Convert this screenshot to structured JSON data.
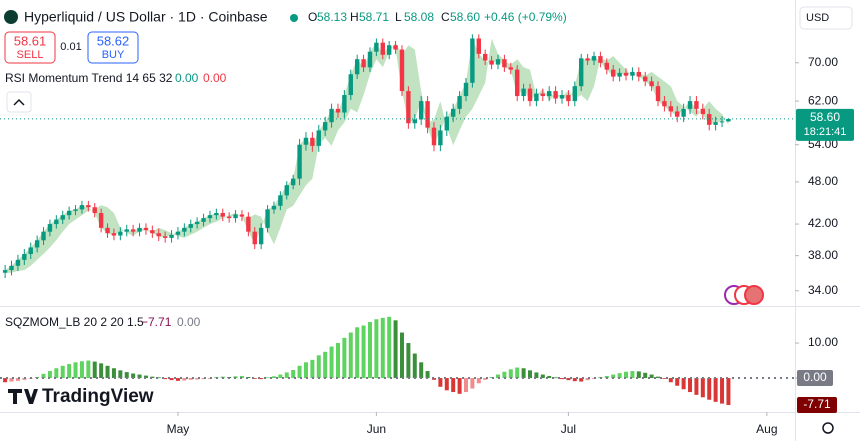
{
  "header": {
    "title": "Hyperliquid / US Dollar · 1D · Coinbase",
    "ohlc": [
      {
        "label": "O",
        "value": "58.13"
      },
      {
        "label": "H",
        "value": "58.71"
      },
      {
        "label": "L",
        "value": "58.08"
      },
      {
        "label": "C",
        "value": "58.60"
      }
    ],
    "change": "+0.46 (+0.79%)",
    "currency": "USD"
  },
  "trade": {
    "sell_price": "58.61",
    "sell": "SELL",
    "spread": "0.01",
    "buy_price": "58.62",
    "buy": "BUY"
  },
  "indicator1": {
    "name": "RSI Momentum Trend 14 65 32",
    "values": [
      "0.00",
      "0.00"
    ]
  },
  "indicator2": {
    "name": "SQZMOM_LB 20 2 20 1.5",
    "values": [
      "−7.71",
      "0.00"
    ]
  },
  "price_tag": {
    "price": "58.60",
    "countdown": "18:21:41"
  },
  "brand": "TradingView",
  "chart_data": [
    {
      "type": "candlestick",
      "open": [
        36.0,
        36.3,
        36.8,
        37.5,
        38.2,
        39.0,
        39.9,
        41.0,
        42.0,
        42.6,
        43.2,
        43.8,
        44.0,
        44.6,
        44.3,
        43.5,
        41.5,
        40.8,
        40.5,
        41.0,
        41.3,
        41.0,
        41.5,
        41.2,
        40.8,
        40.4,
        40.2,
        40.6,
        41.0,
        41.5,
        42.0,
        42.3,
        42.8,
        43.2,
        43.5,
        43.0,
        42.8,
        43.3,
        43.0,
        41.0,
        39.4,
        41.5,
        44.0,
        44.5,
        46.0,
        47.5,
        48.5,
        54.0,
        55.2,
        53.8,
        56.5,
        58.0,
        60.5,
        59.8,
        63.2,
        67.5,
        70.8,
        69.0,
        72.5,
        74.6,
        71.8,
        74.0,
        73.0,
        64.0,
        57.8,
        58.5,
        62.0,
        57.0,
        53.9,
        56.5,
        59.0,
        60.5,
        63.0,
        65.7,
        75.6,
        72.0,
        70.5,
        69.6,
        70.8,
        69.0,
        68.5,
        63.0,
        64.5,
        62.0,
        63.5,
        63.0,
        64.0,
        62.5,
        63.2,
        62.0,
        65.0,
        71.0,
        70.5,
        71.5,
        70.0,
        68.5,
        67.0,
        67.8,
        67.2,
        68.0,
        67.0,
        66.0,
        65.0,
        62.0,
        61.0,
        60.0,
        59.0,
        60.5,
        62.0,
        60.5,
        59.5,
        57.5,
        58.0,
        58.13
      ],
      "high": [
        36.9,
        37.4,
        38.1,
        38.8,
        39.6,
        40.5,
        41.6,
        42.6,
        43.2,
        43.8,
        44.4,
        44.6,
        45.2,
        45.2,
        44.9,
        44.1,
        42.1,
        41.4,
        41.6,
        41.9,
        41.9,
        42.1,
        42.1,
        41.8,
        41.4,
        41.0,
        41.2,
        41.6,
        42.1,
        42.6,
        42.9,
        43.4,
        43.8,
        44.1,
        44.1,
        43.6,
        43.9,
        43.9,
        43.6,
        41.6,
        42.1,
        44.6,
        45.1,
        46.6,
        48.1,
        49.1,
        55.0,
        56.2,
        56.2,
        57.5,
        59.0,
        61.5,
        61.5,
        64.2,
        68.5,
        71.8,
        71.8,
        73.5,
        75.6,
        75.6,
        75.0,
        75.0,
        74.0,
        65.0,
        59.5,
        63.0,
        63.0,
        58.0,
        57.5,
        60.0,
        61.5,
        64.0,
        66.7,
        76.6,
        76.6,
        73.0,
        71.5,
        71.8,
        71.8,
        70.0,
        69.5,
        65.5,
        65.5,
        64.5,
        64.5,
        65.0,
        65.0,
        64.2,
        64.2,
        66.0,
        72.0,
        72.0,
        72.5,
        72.5,
        71.0,
        69.5,
        68.8,
        68.8,
        69.0,
        69.0,
        68.0,
        67.0,
        66.0,
        63.0,
        62.0,
        61.0,
        61.5,
        63.0,
        63.0,
        61.5,
        60.5,
        59.0,
        59.1,
        58.71
      ],
      "low": [
        35.4,
        35.7,
        36.2,
        36.9,
        37.6,
        38.4,
        39.3,
        40.4,
        41.4,
        42.0,
        42.6,
        43.2,
        43.4,
        43.7,
        42.9,
        40.9,
        40.2,
        39.9,
        39.9,
        40.4,
        40.4,
        40.4,
        40.6,
        40.2,
        39.8,
        39.6,
        39.6,
        40.0,
        40.4,
        40.9,
        41.4,
        41.7,
        42.2,
        42.6,
        42.4,
        42.2,
        42.2,
        42.4,
        40.4,
        38.8,
        38.8,
        40.9,
        43.4,
        43.9,
        45.4,
        46.9,
        47.5,
        53.0,
        52.8,
        52.8,
        55.5,
        57.0,
        58.8,
        58.8,
        62.2,
        66.5,
        68.0,
        68.0,
        71.5,
        70.8,
        70.8,
        72.0,
        63.0,
        56.8,
        56.8,
        57.5,
        56.0,
        52.9,
        52.9,
        55.5,
        58.0,
        59.5,
        62.0,
        64.7,
        71.0,
        69.5,
        68.6,
        68.6,
        68.0,
        67.5,
        62.0,
        62.0,
        61.0,
        61.0,
        62.0,
        62.0,
        61.5,
        61.5,
        61.0,
        61.0,
        64.0,
        69.5,
        69.5,
        69.0,
        67.5,
        66.0,
        66.0,
        66.2,
        66.2,
        66.0,
        65.0,
        64.0,
        61.0,
        60.0,
        59.0,
        58.0,
        58.0,
        59.5,
        59.5,
        58.5,
        56.5,
        56.5,
        57.1,
        58.08
      ],
      "close": [
        36.3,
        36.8,
        37.5,
        38.2,
        39.0,
        39.9,
        41.0,
        42.0,
        42.6,
        43.2,
        43.8,
        44.0,
        44.6,
        44.3,
        43.5,
        41.5,
        40.8,
        40.5,
        41.0,
        41.3,
        41.0,
        41.5,
        41.2,
        40.8,
        40.4,
        40.2,
        40.6,
        41.0,
        41.5,
        42.0,
        42.3,
        42.8,
        43.2,
        43.5,
        43.0,
        42.8,
        43.3,
        43.0,
        41.0,
        39.4,
        41.5,
        44.0,
        44.5,
        46.0,
        47.5,
        48.5,
        54.0,
        55.2,
        53.8,
        56.5,
        58.0,
        60.5,
        59.8,
        63.2,
        67.5,
        70.8,
        69.0,
        72.5,
        74.6,
        71.8,
        74.0,
        73.0,
        64.0,
        57.8,
        58.5,
        62.0,
        57.0,
        53.9,
        56.5,
        59.0,
        60.5,
        63.0,
        65.7,
        75.6,
        72.0,
        70.5,
        69.6,
        70.8,
        69.0,
        68.5,
        63.0,
        64.5,
        62.0,
        63.5,
        63.0,
        64.0,
        62.5,
        63.2,
        62.0,
        65.0,
        71.0,
        70.5,
        71.5,
        70.0,
        68.5,
        67.0,
        67.8,
        67.2,
        68.0,
        67.0,
        66.0,
        65.0,
        62.0,
        61.0,
        60.0,
        59.0,
        60.5,
        62.0,
        60.5,
        59.5,
        57.5,
        58.0,
        58.13,
        58.6
      ],
      "trend": [
        36.0,
        36.0,
        36.2,
        36.3,
        36.8,
        37.5,
        38.2,
        39.0,
        39.9,
        41.0,
        42.0,
        42.6,
        43.2,
        43.8,
        44.0,
        44.6,
        44.3,
        43.5,
        41.5,
        40.8,
        40.5,
        41.0,
        41.3,
        41.0,
        41.5,
        41.2,
        40.8,
        40.4,
        40.2,
        40.6,
        41.0,
        41.5,
        42.0,
        42.3,
        42.8,
        43.2,
        43.5,
        43.0,
        42.8,
        43.3,
        43.0,
        41.0,
        39.4,
        41.5,
        44.0,
        44.5,
        46.0,
        47.5,
        48.5,
        54.0,
        55.2,
        53.8,
        56.5,
        58.0,
        60.5,
        59.8,
        63.2,
        67.5,
        70.8,
        69.0,
        72.5,
        74.6,
        71.8,
        74.0,
        73.0,
        64.0,
        57.8,
        58.5,
        62.0,
        57.0,
        53.9,
        56.5,
        59.0,
        60.5,
        63.0,
        65.7,
        75.6,
        72.0,
        70.5,
        69.6,
        70.8,
        69.0,
        68.5,
        63.0,
        64.5,
        62.0,
        63.5,
        63.0,
        64.0,
        62.5,
        63.2,
        62.0,
        65.0,
        71.0,
        70.5,
        71.5,
        70.0,
        68.5,
        67.0,
        67.8,
        67.2,
        68.0,
        67.0,
        66.0,
        65.0,
        62.0,
        61.0,
        60.0,
        59.0,
        60.5,
        62.0,
        60.5,
        59.5,
        57.5
      ],
      "up_color": "#089981",
      "down_color": "#f23645",
      "trend_color": "#4caf50",
      "log_scale": true,
      "grid": false,
      "ylim": [
        32.4,
        85.4
      ],
      "yticks": [
        {
          "value": 70,
          "label": "70.00"
        },
        {
          "value": 62,
          "label": "62.00"
        },
        {
          "value": 54,
          "label": "54.00"
        },
        {
          "value": 48,
          "label": "48.00"
        },
        {
          "value": 42,
          "label": "42.00"
        },
        {
          "value": 38,
          "label": "38.00"
        },
        {
          "value": 34,
          "label": "34.00"
        }
      ],
      "xlim": [
        -0.8,
        123.4
      ],
      "xticks": [
        {
          "value": 27,
          "label": "May"
        },
        {
          "value": 58,
          "label": "Jun"
        },
        {
          "value": 88,
          "label": "Jul"
        },
        {
          "value": 119,
          "label": "Aug"
        }
      ]
    },
    {
      "type": "bar",
      "values": [
        -1.2,
        -1.0,
        -0.8,
        -0.5,
        -0.2,
        0.3,
        1.2,
        2.0,
        2.8,
        3.5,
        4.0,
        4.5,
        4.8,
        5.0,
        4.7,
        4.2,
        3.5,
        2.8,
        2.2,
        1.7,
        1.3,
        1.0,
        0.7,
        0.4,
        0.2,
        -0.3,
        -0.6,
        -0.8,
        -0.7,
        -0.5,
        -0.4,
        -0.3,
        -0.2,
        0.3,
        0.4,
        0.3,
        0.5,
        0.6,
        0.3,
        -0.2,
        -0.3,
        0.2,
        0.5,
        1.0,
        1.6,
        2.3,
        3.5,
        4.5,
        5.2,
        6.5,
        7.5,
        9.0,
        10.0,
        11.5,
        13.0,
        14.5,
        15.0,
        16.0,
        16.8,
        17.2,
        17.5,
        16.5,
        13.0,
        10.0,
        7.0,
        4.5,
        2.0,
        -0.5,
        -2.5,
        -3.5,
        -4.0,
        -4.5,
        -4.0,
        -3.0,
        -1.5,
        -0.5,
        0.3,
        1.0,
        1.8,
        2.5,
        3.0,
        2.8,
        2.2,
        1.6,
        1.0,
        0.6,
        0.2,
        -0.3,
        -0.6,
        -0.9,
        -1.0,
        -0.6,
        -0.2,
        0.3,
        0.6,
        1.0,
        1.4,
        1.8,
        2.0,
        1.9,
        1.5,
        1.0,
        0.4,
        -0.2,
        -1.2,
        -2.2,
        -3.2,
        -4.0,
        -4.8,
        -5.5,
        -6.2,
        -6.8,
        -7.3,
        -7.71
      ],
      "colors": {
        "pos_rising": "#5fd35f",
        "pos_falling": "#3b8f3b",
        "neg_falling": "#d93636",
        "neg_rising": "#f08c8c"
      },
      "ylim": [
        -9.7,
        20.3
      ],
      "yticks": [
        {
          "value": 10,
          "label": "10.00"
        },
        {
          "value": 0,
          "label": "0.00"
        }
      ]
    }
  ]
}
